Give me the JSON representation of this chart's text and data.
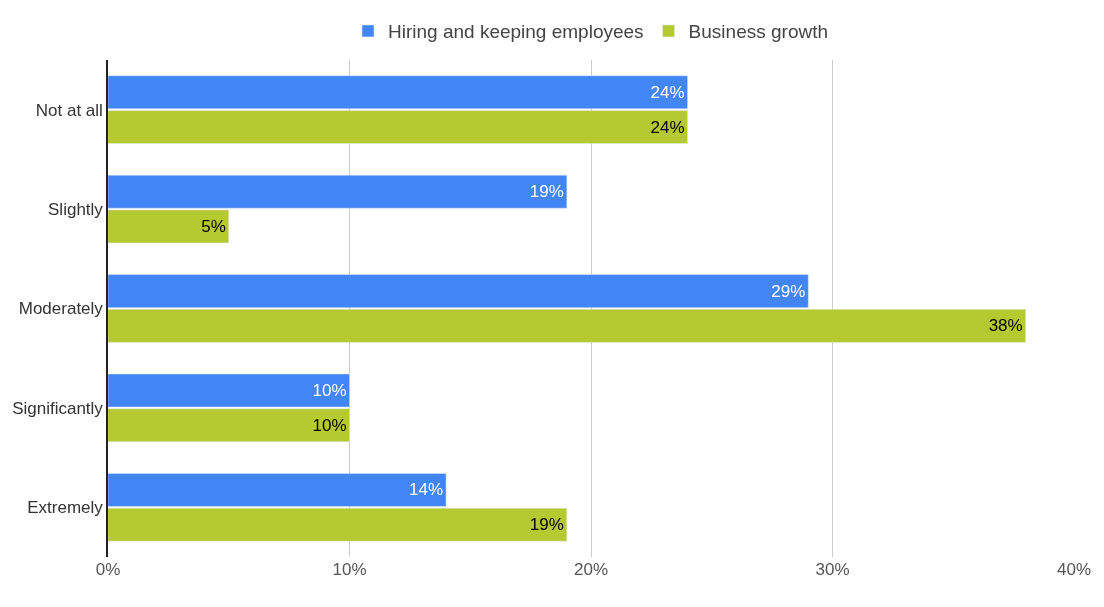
{
  "chart_data": {
    "type": "bar",
    "orientation": "horizontal",
    "categories": [
      "Not at all",
      "Slightly",
      "Moderately",
      "Significantly",
      "Extremely"
    ],
    "series": [
      {
        "name": "Hiring and keeping employees",
        "color": "#4285f4",
        "values": [
          24,
          19,
          29,
          10,
          14
        ],
        "value_labels": [
          "24%",
          "19%",
          "29%",
          "10%",
          "14%"
        ]
      },
      {
        "name": "Business growth",
        "color": "#b5c930",
        "values": [
          24,
          5,
          38,
          10,
          19
        ],
        "value_labels": [
          "24%",
          "5%",
          "38%",
          "10%",
          "19%"
        ]
      }
    ],
    "xlim": [
      0,
      40
    ],
    "xticks": [
      {
        "value": 0,
        "label": "0%"
      },
      {
        "value": 10,
        "label": "10%"
      },
      {
        "value": 20,
        "label": "20%"
      },
      {
        "value": 30,
        "label": "30%"
      },
      {
        "value": 40,
        "label": "40%"
      }
    ],
    "grid": "x",
    "legend": "top"
  }
}
